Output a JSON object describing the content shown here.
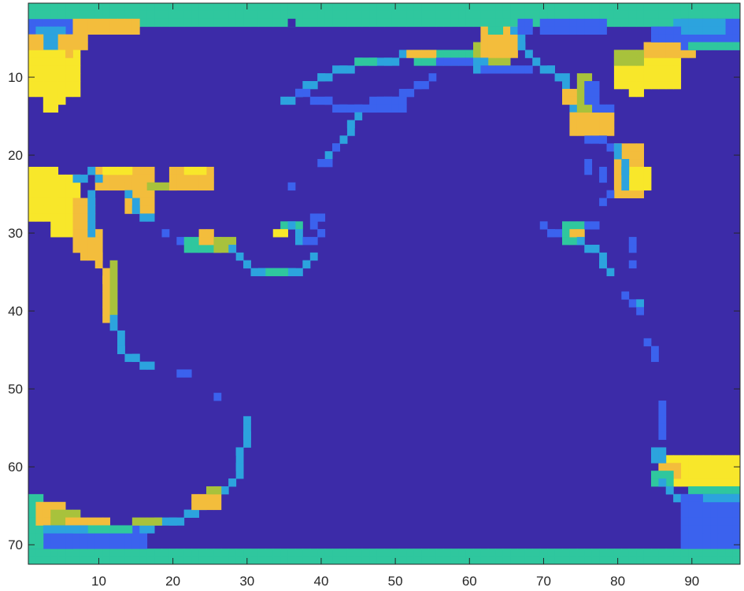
{
  "chart_data": {
    "type": "heatmap",
    "title": "",
    "xlabel": "",
    "ylabel": "",
    "xlim": [
      0.5,
      96.5
    ],
    "ylim": [
      0.5,
      72.5
    ],
    "y_reversed": true,
    "grid": false,
    "colormap": "parula",
    "color_levels": {
      "ocean": "#3c2ba8",
      "low": "#3b62ee",
      "mid_low": "#2ca3de",
      "mid": "#2fc79e",
      "mid_high": "#a8c23c",
      "high": "#f3bd3c",
      "max": "#f8e72a"
    },
    "x_ticks": [
      10,
      20,
      30,
      40,
      50,
      60,
      70,
      80,
      90
    ],
    "y_ticks": [
      10,
      20,
      30,
      40,
      50,
      60,
      70
    ],
    "features": [
      {
        "name": "top-band",
        "level": "mid",
        "rows": [
          1,
          3
        ],
        "cols": [
          1,
          96
        ]
      },
      {
        "name": "bottom-band",
        "level": "mid",
        "rows": [
          71,
          72
        ],
        "cols": [
          1,
          96
        ]
      },
      {
        "name": "nw-landmass",
        "level": "max",
        "rows": [
          6,
          13
        ],
        "cols": [
          1,
          6
        ]
      },
      {
        "name": "west-landmass",
        "level": "max",
        "rows": [
          22,
          30
        ],
        "cols": [
          1,
          6
        ]
      },
      {
        "name": "ne-landmass",
        "level": "max",
        "rows": [
          6,
          12
        ],
        "cols": [
          80,
          88
        ]
      },
      {
        "name": "se-landmass",
        "level": "max",
        "rows": [
          59,
          62
        ],
        "cols": [
          86,
          96
        ]
      },
      {
        "name": "sw-landmass",
        "level": "high",
        "rows": [
          64,
          68
        ],
        "cols": [
          1,
          16
        ]
      }
    ]
  }
}
